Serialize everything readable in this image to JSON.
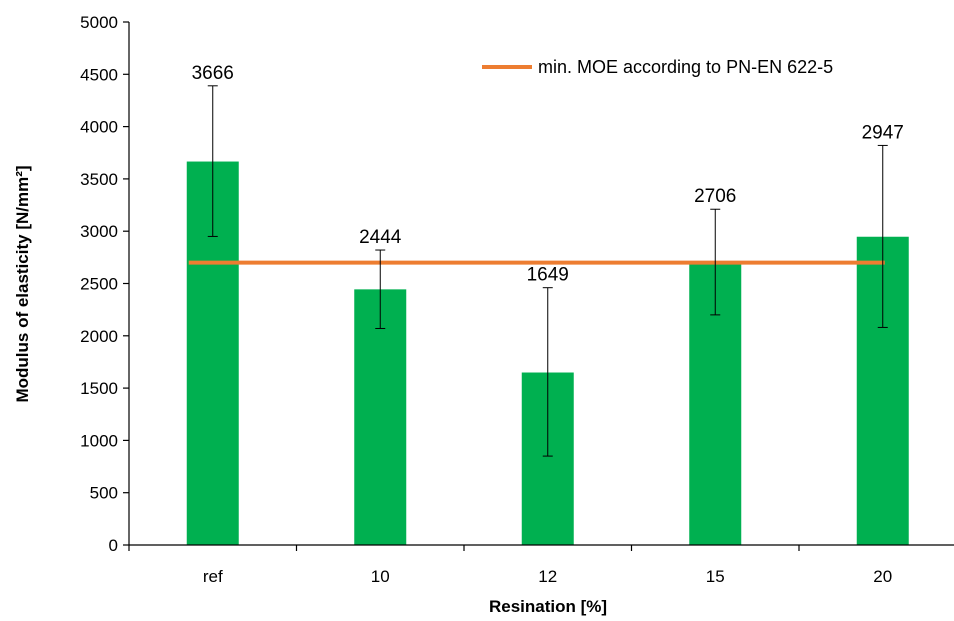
{
  "chart_data": {
    "type": "bar",
    "xlabel": "Resination [%]",
    "ylabel": "Modulus of elasticity [N/mm²]",
    "ylim": [
      0,
      5000
    ],
    "y_ticks": [
      0,
      500,
      1000,
      1500,
      2000,
      2500,
      3000,
      3500,
      4000,
      4500,
      5000
    ],
    "categories": [
      "ref",
      "10",
      "12",
      "15",
      "20"
    ],
    "values": [
      3666,
      2444,
      1649,
      2706,
      2947
    ],
    "data_labels": [
      "3666",
      "2444",
      "1649",
      "2706",
      "2947"
    ],
    "error_bars": [
      {
        "low": 2950,
        "high": 4390
      },
      {
        "low": 2070,
        "high": 2820
      },
      {
        "low": 850,
        "high": 2460
      },
      {
        "low": 2200,
        "high": 3210
      },
      {
        "low": 2080,
        "high": 3820
      }
    ],
    "reference_line": {
      "name": "min. MOE according to PN-EN 622-5",
      "value": 2700
    },
    "legend_position": "top-right",
    "grid": false,
    "colors": {
      "bar": "#00b050",
      "line": "#ed7d31",
      "axis": "#000000"
    }
  }
}
